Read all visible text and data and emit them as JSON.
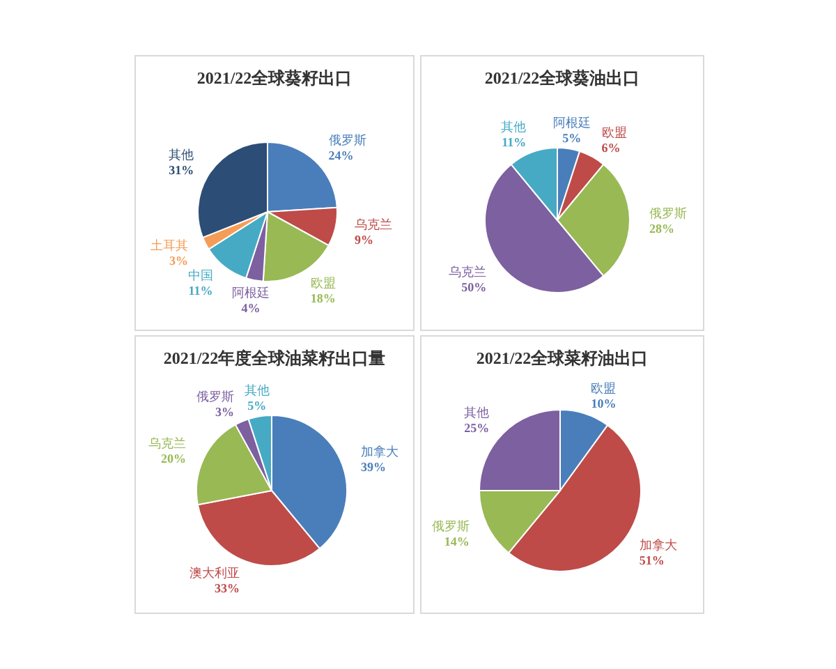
{
  "chart_data": [
    {
      "type": "pie",
      "title": "2021/22全球葵籽出口",
      "categories": [
        "俄罗斯",
        "乌克兰",
        "欧盟",
        "阿根廷",
        "中国",
        "土耳其",
        "其他"
      ],
      "values": [
        24,
        9,
        18,
        4,
        11,
        3,
        31
      ],
      "value_labels": [
        "24%",
        "9%",
        "18%",
        "4%",
        "11%",
        "3%",
        "31%"
      ],
      "colors": [
        "#4a7ebb",
        "#be4b48",
        "#98b954",
        "#7d60a0",
        "#46aac5",
        "#f59d56",
        "#2c4d75"
      ]
    },
    {
      "type": "pie",
      "title": "2021/22全球葵油出口",
      "categories": [
        "阿根廷",
        "欧盟",
        "俄罗斯",
        "乌克兰",
        "其他"
      ],
      "values": [
        5,
        6,
        28,
        50,
        11
      ],
      "value_labels": [
        "5%",
        "6%",
        "28%",
        "50%",
        "11%"
      ],
      "colors": [
        "#4a7ebb",
        "#be4b48",
        "#98b954",
        "#7d60a0",
        "#46aac5"
      ]
    },
    {
      "type": "pie",
      "title": "2021/22年度全球油菜籽出口量",
      "categories": [
        "加拿大",
        "澳大利亚",
        "乌克兰",
        "俄罗斯",
        "其他"
      ],
      "values": [
        39,
        33,
        20,
        3,
        5
      ],
      "value_labels": [
        "39%",
        "33%",
        "20%",
        "3%",
        "5%"
      ],
      "colors": [
        "#4a7ebb",
        "#be4b48",
        "#98b954",
        "#7d60a0",
        "#46aac5"
      ]
    },
    {
      "type": "pie",
      "title": "2021/22全球菜籽油出口",
      "categories": [
        "欧盟",
        "加拿大",
        "俄罗斯",
        "其他"
      ],
      "values": [
        10,
        51,
        14,
        25
      ],
      "value_labels": [
        "10%",
        "51%",
        "14%",
        "25%"
      ],
      "colors": [
        "#4a7ebb",
        "#be4b48",
        "#98b954",
        "#7d60a0"
      ]
    }
  ]
}
